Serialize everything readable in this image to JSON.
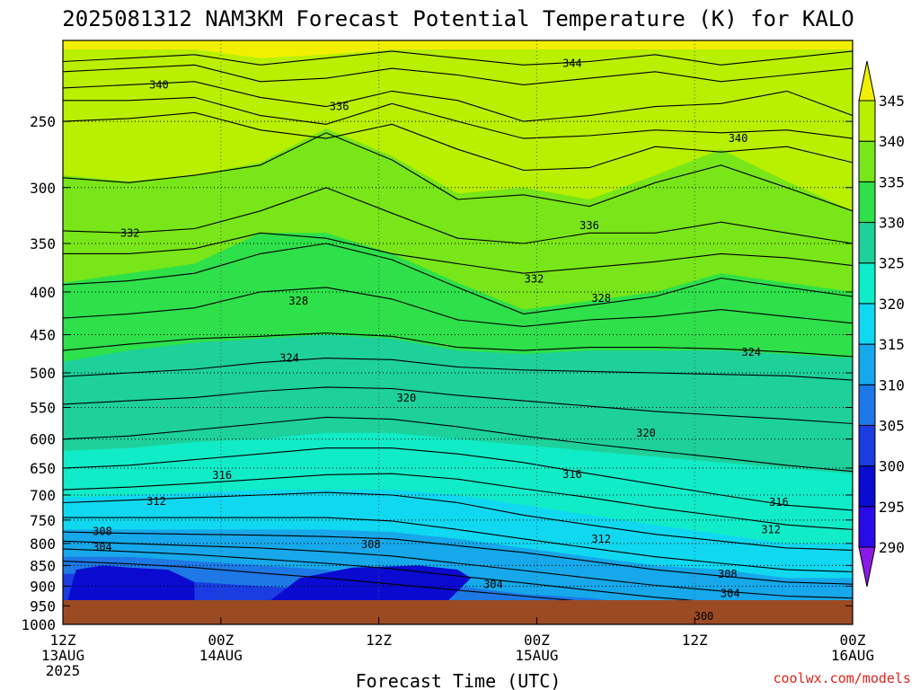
{
  "chart_data": {
    "type": "heatmap",
    "title": "2025081312 NAM3KM Forecast Potential Temperature (K) for KALO",
    "xlabel": "Forecast Time (UTC)",
    "ylabel": "",
    "x_ticks": [
      {
        "value": 0,
        "line1": "12Z",
        "line2": "13AUG",
        "line3": "2025"
      },
      {
        "value": 12,
        "line1": "00Z",
        "line2": "14AUG",
        "line3": ""
      },
      {
        "value": 24,
        "line1": "12Z",
        "line2": "",
        "line3": ""
      },
      {
        "value": 36,
        "line1": "00Z",
        "line2": "15AUG",
        "line3": ""
      },
      {
        "value": 48,
        "line1": "12Z",
        "line2": "",
        "line3": ""
      },
      {
        "value": 60,
        "line1": "00Z",
        "line2": "16AUG",
        "line3": ""
      }
    ],
    "xlim": [
      0,
      60
    ],
    "y_ticks": [
      250,
      300,
      350,
      400,
      450,
      500,
      550,
      600,
      650,
      700,
      750,
      800,
      850,
      900,
      950,
      1000
    ],
    "ylim": [
      200,
      1000
    ],
    "y_scale": "log",
    "colorbar": {
      "levels": [
        290,
        295,
        300,
        305,
        310,
        315,
        320,
        325,
        330,
        335,
        340,
        345
      ],
      "labels": [
        "290",
        "295",
        "300",
        "305",
        "310",
        "315",
        "320",
        "325",
        "330",
        "335",
        "340",
        "345"
      ],
      "colors": [
        "#8a1ae6",
        "#2a0ae6",
        "#0a0ad0",
        "#1a3ce0",
        "#1e78e6",
        "#16a8ea",
        "#10d8f0",
        "#10ecc8",
        "#1ed09a",
        "#2ee04a",
        "#78e618",
        "#b8f000",
        "#f0f000"
      ],
      "extend": "both"
    },
    "contour_labels": [
      {
        "text": "340",
        "x": 7.3,
        "y": 226
      },
      {
        "text": "344",
        "x": 38.7,
        "y": 213
      },
      {
        "text": "336",
        "x": 21.0,
        "y": 240
      },
      {
        "text": "340",
        "x": 51.3,
        "y": 262
      },
      {
        "text": "332",
        "x": 5.1,
        "y": 340
      },
      {
        "text": "336",
        "x": 40.0,
        "y": 333
      },
      {
        "text": "332",
        "x": 35.8,
        "y": 386
      },
      {
        "text": "328",
        "x": 17.9,
        "y": 410
      },
      {
        "text": "328",
        "x": 40.9,
        "y": 407
      },
      {
        "text": "324",
        "x": 17.2,
        "y": 480
      },
      {
        "text": "324",
        "x": 52.3,
        "y": 472
      },
      {
        "text": "320",
        "x": 26.1,
        "y": 536
      },
      {
        "text": "320",
        "x": 44.3,
        "y": 590
      },
      {
        "text": "316",
        "x": 12.1,
        "y": 663
      },
      {
        "text": "316",
        "x": 38.7,
        "y": 661
      },
      {
        "text": "316",
        "x": 54.4,
        "y": 714
      },
      {
        "text": "312",
        "x": 7.1,
        "y": 712
      },
      {
        "text": "312",
        "x": 40.9,
        "y": 790
      },
      {
        "text": "312",
        "x": 53.8,
        "y": 770
      },
      {
        "text": "308",
        "x": 3.0,
        "y": 774
      },
      {
        "text": "308",
        "x": 23.4,
        "y": 802
      },
      {
        "text": "308",
        "x": 50.5,
        "y": 870
      },
      {
        "text": "304",
        "x": 3.0,
        "y": 808
      },
      {
        "text": "304",
        "x": 32.7,
        "y": 896
      },
      {
        "text": "304",
        "x": 50.7,
        "y": 918
      },
      {
        "text": "300",
        "x": 48.7,
        "y": 978
      }
    ],
    "bands": [
      {
        "cls": 11,
        "y": [
          205,
          205,
          205,
          210,
          208,
          205,
          205,
          205,
          205,
          205,
          205,
          205,
          205
        ]
      },
      {
        "cls": 10,
        "y": [
          290,
          295,
          290,
          280,
          255,
          275,
          305,
          300,
          310,
          290,
          270,
          295,
          320
        ]
      },
      {
        "cls": 9,
        "y": [
          390,
          380,
          370,
          340,
          340,
          360,
          390,
          420,
          410,
          400,
          380,
          390,
          400
        ]
      },
      {
        "cls": 8,
        "y": [
          485,
          470,
          460,
          455,
          450,
          455,
          470,
          475,
          470,
          470,
          470,
          475,
          480
        ]
      },
      {
        "cls": 7,
        "y": [
          620,
          615,
          605,
          600,
          590,
          590,
          600,
          610,
          620,
          630,
          640,
          650,
          660
        ]
      },
      {
        "cls": 6,
        "y": [
          705,
          700,
          695,
          690,
          690,
          690,
          700,
          720,
          740,
          760,
          780,
          800,
          800
        ]
      },
      {
        "cls": 5,
        "y": [
          770,
          770,
          770,
          770,
          770,
          775,
          790,
          810,
          830,
          850,
          860,
          880,
          880
        ]
      },
      {
        "cls": 4,
        "y": [
          830,
          830,
          840,
          850,
          860,
          880,
          900,
          920,
          930,
          950,
          960,
          970,
          970
        ]
      },
      {
        "cls": 3,
        "y": [
          870,
          870,
          890,
          900,
          910,
          930,
          950,
          965,
          975,
          985,
          990,
          995,
          1000
        ]
      }
    ],
    "cold_pools": [
      {
        "cls": 2,
        "x": [
          0,
          1,
          3,
          5,
          8,
          10,
          10,
          0
        ],
        "y": [
          980,
          860,
          850,
          855,
          860,
          890,
          980,
          980
        ]
      },
      {
        "cls": 2,
        "x": [
          14,
          16,
          18,
          22,
          27,
          30,
          31,
          28,
          14
        ],
        "y": [
          980,
          930,
          880,
          855,
          850,
          860,
          880,
          980,
          980
        ]
      },
      {
        "cls": 2,
        "x": [
          39,
          44,
          48,
          53,
          53,
          39
        ],
        "y": [
          980,
          960,
          948,
          960,
          980,
          980
        ]
      }
    ],
    "contour_lines": [
      {
        "v": 344,
        "y": [
          212,
          210,
          208,
          214,
          210,
          206,
          210,
          214,
          212,
          208,
          214,
          210,
          206
        ]
      },
      {
        "v": 342,
        "y": [
          218,
          216,
          214,
          224,
          222,
          216,
          220,
          226,
          222,
          218,
          224,
          220,
          216
        ]
      },
      {
        "v": 340,
        "y": [
          228,
          226,
          224,
          234,
          240,
          230,
          236,
          250,
          246,
          240,
          238,
          230,
          246
        ]
      },
      {
        "v": 338,
        "y": [
          236,
          236,
          234,
          246,
          252,
          238,
          250,
          262,
          260,
          256,
          258,
          256,
          262
        ]
      },
      {
        "v": 336,
        "y": [
          250,
          248,
          244,
          256,
          262,
          252,
          270,
          286,
          284,
          268,
          272,
          268,
          280
        ]
      },
      {
        "v": 334,
        "y": [
          292,
          296,
          290,
          282,
          258,
          278,
          310,
          306,
          316,
          296,
          282,
          300,
          320
        ]
      },
      {
        "v": 332,
        "y": [
          338,
          340,
          336,
          320,
          300,
          322,
          345,
          350,
          340,
          340,
          330,
          340,
          350
        ]
      },
      {
        "v": 330,
        "y": [
          360,
          360,
          355,
          340,
          345,
          360,
          370,
          380,
          374,
          368,
          360,
          364,
          372
        ]
      },
      {
        "v": 328,
        "y": [
          392,
          388,
          380,
          360,
          350,
          366,
          395,
          425,
          415,
          405,
          385,
          395,
          405
        ]
      },
      {
        "v": 326,
        "y": [
          430,
          425,
          418,
          400,
          395,
          408,
          432,
          440,
          432,
          428,
          420,
          428,
          436
        ]
      },
      {
        "v": 324,
        "y": [
          470,
          462,
          455,
          452,
          448,
          452,
          466,
          470,
          466,
          466,
          468,
          472,
          478
        ]
      },
      {
        "v": 322,
        "y": [
          505,
          500,
          495,
          486,
          480,
          482,
          492,
          496,
          498,
          500,
          502,
          504,
          510
        ]
      },
      {
        "v": 320,
        "y": [
          545,
          540,
          535,
          526,
          520,
          522,
          532,
          540,
          548,
          556,
          562,
          568,
          575
        ]
      },
      {
        "v": 318,
        "y": [
          600,
          595,
          585,
          575,
          565,
          568,
          580,
          595,
          608,
          620,
          632,
          645,
          656
        ]
      },
      {
        "v": 316,
        "y": [
          650,
          645,
          635,
          625,
          615,
          615,
          625,
          640,
          660,
          680,
          700,
          720,
          730
        ]
      },
      {
        "v": 314,
        "y": [
          690,
          685,
          678,
          670,
          662,
          660,
          670,
          688,
          705,
          725,
          742,
          760,
          770
        ]
      },
      {
        "v": 312,
        "y": [
          715,
          710,
          705,
          700,
          695,
          700,
          715,
          740,
          760,
          780,
          795,
          810,
          815
        ]
      },
      {
        "v": 310,
        "y": [
          745,
          745,
          745,
          745,
          745,
          752,
          770,
          790,
          810,
          830,
          845,
          860,
          865
        ]
      },
      {
        "v": 308,
        "y": [
          775,
          778,
          780,
          782,
          785,
          790,
          805,
          820,
          840,
          860,
          875,
          890,
          895
        ]
      },
      {
        "v": 306,
        "y": [
          795,
          800,
          805,
          810,
          818,
          828,
          845,
          862,
          880,
          898,
          912,
          925,
          930
        ]
      },
      {
        "v": 304,
        "y": [
          812,
          818,
          825,
          835,
          845,
          858,
          875,
          892,
          910,
          928,
          942,
          955,
          960
        ]
      },
      {
        "v": 302,
        "y": [
          840,
          846,
          855,
          868,
          880,
          895,
          910,
          925,
          940,
          955,
          965,
          975,
          980
        ]
      }
    ],
    "contour_x": [
      0,
      5,
      10,
      15,
      20,
      25,
      30,
      35,
      40,
      45,
      50,
      55,
      60
    ]
  },
  "credit": "coolwx.com/models"
}
